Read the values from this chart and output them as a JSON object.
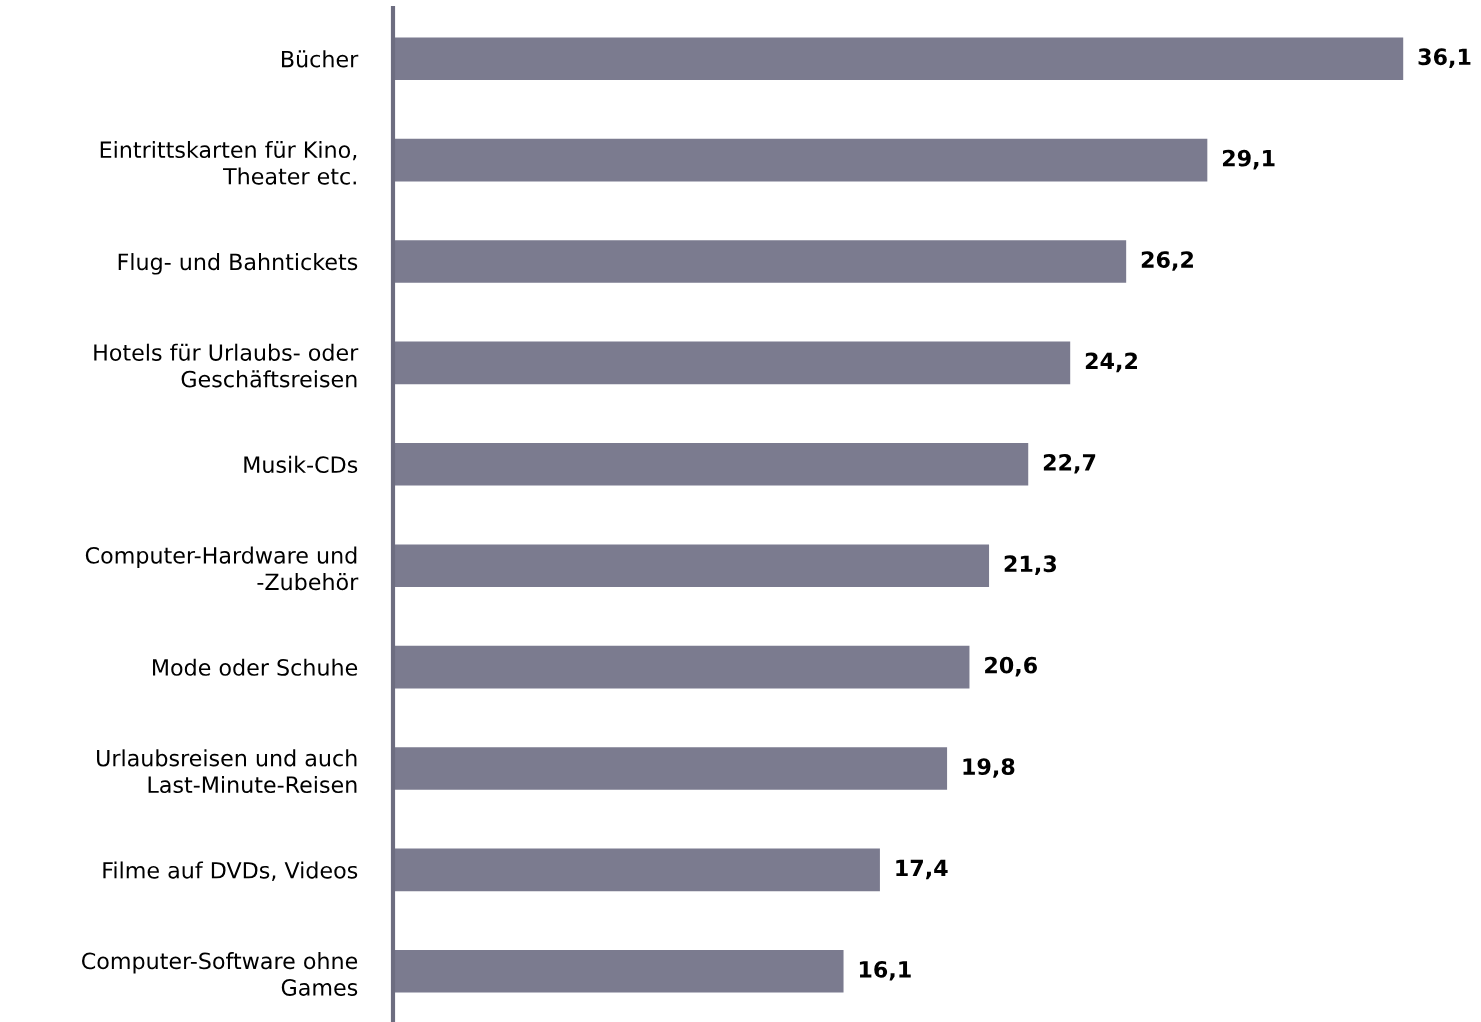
{
  "chart_data": {
    "type": "bar",
    "orientation": "horizontal",
    "categories": [
      "Bücher",
      "Eintrittskarten für Kino,\nTheater etc.",
      "Flug- und Bahntickets",
      "Hotels für Urlaubs- oder\nGeschäftsreisen",
      "Musik-CDs",
      "Computer-Hardware und\n-Zubehör",
      "Mode oder Schuhe",
      "Urlaubsreisen und auch\nLast-Minute-Reisen",
      "Filme auf DVDs, Videos",
      "Computer-Software ohne\nGames"
    ],
    "values": [
      36.1,
      29.1,
      26.2,
      24.2,
      22.7,
      21.3,
      20.6,
      19.8,
      17.4,
      16.1
    ],
    "value_labels": [
      "36,1",
      "29,1",
      "26,2",
      "24,2",
      "22,7",
      "21,3",
      "20,6",
      "19,8",
      "17,4",
      "16,1"
    ],
    "color": "#7b7b8f",
    "grid": false,
    "legend": false
  }
}
